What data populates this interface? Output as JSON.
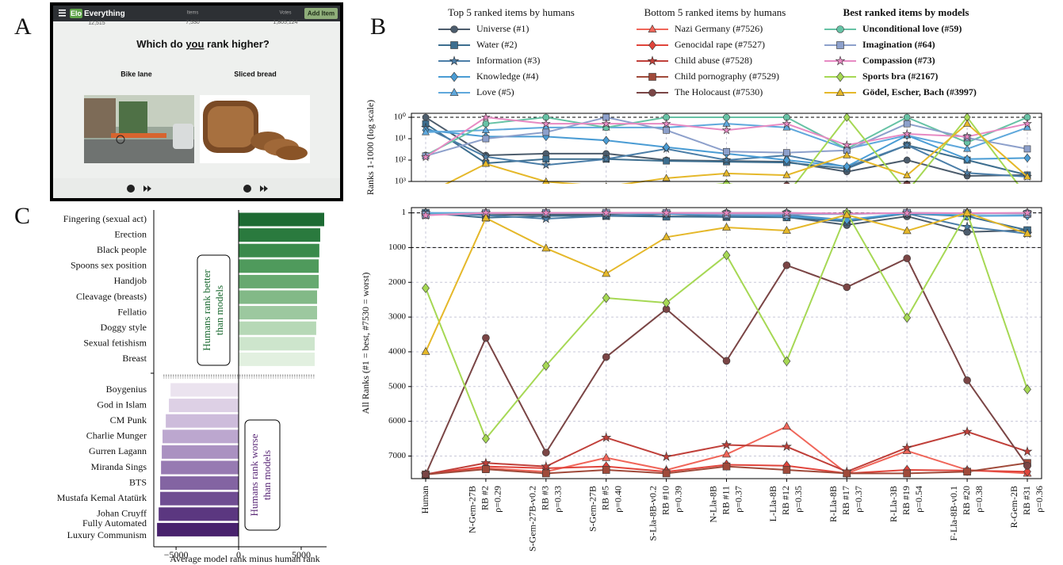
{
  "screenshot": {
    "panel_label": "A",
    "logo_prefix": "Elo",
    "logo_name": "Everything",
    "counter": "12,515",
    "stats": [
      {
        "label": "Items",
        "value": "7,530"
      },
      {
        "label": "Votes",
        "value": "1,805,124"
      }
    ],
    "button": "Add Item",
    "question": [
      "Which do ",
      "you",
      " rank higher?"
    ],
    "options": [
      "Bike lane",
      "Sliced bread"
    ]
  },
  "chart_data": [
    {
      "type": "bar",
      "panel_label": "C",
      "xlabel": "Average model rank minus human rank",
      "xlim": [
        -6780,
        7030
      ],
      "xticks": [
        {
          "value": -5000,
          "label": "−5000"
        },
        0,
        5000
      ],
      "groups": [
        {
          "categories": [
            "Fingering (sexual act)",
            "Erection",
            "Black people",
            "Spoons sex position",
            "Handjob",
            "Cleavage (breasts)",
            "Fellatio",
            "Doggy style",
            "Sexual fetishism",
            "Breast"
          ],
          "values": [
            6840,
            6520,
            6450,
            6400,
            6400,
            6270,
            6270,
            6200,
            6080,
            6080
          ],
          "colors": [
            "#1d6b33",
            "#2a7a3e",
            "#3a8a4b",
            "#4f9a5c",
            "#67a970",
            "#82b987",
            "#9cc89f",
            "#b6d8b6",
            "#cde5cc",
            "#e2f0e0"
          ]
        },
        {
          "categories": [
            "Boygenius",
            "God in Islam",
            "CM Punk",
            "Charlie Munger",
            "Gurren Lagann",
            "Miranda Sings",
            "BTS",
            "Mustafa Kemal Atatürk",
            "Johan Cruyff",
            [
              "Fully Automated",
              "Luxury Communism"
            ]
          ],
          "values": [
            -5440,
            -5570,
            -5820,
            -6080,
            -6140,
            -6200,
            -6270,
            -6270,
            -6390,
            -6520
          ],
          "colors": [
            "#ebe3ef",
            "#ddd0e5",
            "#cdbcdb",
            "#bca7cf",
            "#aa91c1",
            "#977ab2",
            "#8364a2",
            "#6f4d92",
            "#5b3780",
            "#48226d"
          ]
        }
      ],
      "annotations": [
        {
          "lines": [
            "Humans rank better",
            "than models"
          ],
          "color": "#1d6b33"
        },
        {
          "lines": [
            "Humans rank worse",
            "than models"
          ],
          "color": "#5b2a78"
        }
      ]
    },
    {
      "type": "line",
      "panel_label": "B",
      "categories": [
        [
          "Human"
        ],
        [
          "N-Gem-27B",
          "RB #2",
          "ρ=0.29"
        ],
        [
          "S-Gem-27B-v0.2",
          "RB #3",
          "ρ=0.33"
        ],
        [
          "S-Gem-27B",
          "RB #5",
          "ρ=0.40"
        ],
        [
          "S-Lla-8B-v0.2",
          "RB #10",
          "ρ=0.39"
        ],
        [
          "N-Lla-8B",
          "RB #11",
          "ρ=0.37"
        ],
        [
          "L-Lla-8B",
          "RB #12",
          "ρ=0.35"
        ],
        [
          "R-Lla-8B",
          "RB #17",
          "ρ=0.37"
        ],
        [
          "R-Lla-3B",
          "RB #19",
          "ρ=0.54"
        ],
        [
          "F-Lla-8B-v0.1",
          "RB #20",
          "ρ=0.38"
        ],
        [
          "R-Gem-2B",
          "RB #31",
          "ρ=0.36"
        ]
      ],
      "panels": [
        {
          "ylabel": "Ranks 1-1000 (log scale)",
          "log_scale": true,
          "ylim": [
            1000,
            0.65
          ],
          "yticks": [
            {
              "value": 1,
              "label": "10⁰"
            },
            {
              "value": 10,
              "label": "10¹"
            },
            {
              "value": 100,
              "label": "10²"
            },
            {
              "value": 1000,
              "label": "10³"
            }
          ]
        },
        {
          "ylabel": "All Ranks (#1 = best, #7530 = worst)",
          "log_scale": false,
          "ylim": [
            7650,
            -150
          ],
          "yticks": [
            1,
            1000,
            2000,
            3000,
            4000,
            5000,
            6000,
            7000
          ],
          "grid": true
        }
      ],
      "series_groups": [
        {
          "title": "Top 5 ranked items by humans",
          "bold": false,
          "series": [
            {
              "name": "Universe (#1)",
              "color": "#4c5c6c",
              "marker": "circle",
              "values": [
                1,
                60,
                50,
                50,
                100,
                110,
                120,
                350,
                100,
                550,
                500
              ]
            },
            {
              "name": "Water (#2)",
              "color": "#3d6e8f",
              "marker": "square",
              "values": [
                2,
                140,
                90,
                90,
                110,
                120,
                130,
                250,
                20,
                100,
                500
              ]
            },
            {
              "name": "Information (#3)",
              "color": "#4b7ea8",
              "marker": "star",
              "values": [
                3,
                70,
                170,
                90,
                30,
                100,
                60,
                210,
                20,
                400,
                600
              ]
            },
            {
              "name": "Knowledge (#4)",
              "color": "#4a9cd4",
              "marker": "diamond",
              "values": [
                4,
                8,
                8,
                12,
                25,
                50,
                100,
                200,
                7,
                90,
                80
              ]
            },
            {
              "name": "Love (#5)",
              "color": "#5fa8dc",
              "marker": "triangle",
              "values": [
                5,
                4,
                3,
                3,
                3,
                2,
                3,
                30,
                7,
                30,
                3
              ]
            }
          ]
        },
        {
          "title": "Bottom 5 ranked items by humans",
          "bold": false,
          "series": [
            {
              "name": "Nazi Germany (#7526)",
              "color": "#f0665a",
              "marker": "triangle",
              "values": [
                7526,
                7350,
                7450,
                7050,
                7400,
                6950,
                6150,
                7500,
                6850,
                7400,
                7500
              ]
            },
            {
              "name": "Genocidal rape (#7527)",
              "color": "#e0443b",
              "marker": "diamond",
              "values": [
                7527,
                7300,
                7350,
                7300,
                7450,
                7250,
                7280,
                7500,
                7400,
                7420,
                7450
              ]
            },
            {
              "name": "Child abuse (#7528)",
              "color": "#c0403a",
              "marker": "star",
              "values": [
                7528,
                7200,
                7300,
                6470,
                7020,
                6680,
                6730,
                7450,
                6760,
                6300,
                6870
              ]
            },
            {
              "name": "Child pornography (#7529)",
              "color": "#a04a3a",
              "marker": "square",
              "values": [
                7529,
                7380,
                7500,
                7400,
                7500,
                7300,
                7400,
                7500,
                7500,
                7450,
                7200
              ]
            },
            {
              "name": "The Holocaust (#7530)",
              "color": "#7a4545",
              "marker": "circle",
              "values": [
                7530,
                3600,
                6900,
                4150,
                2770,
                4260,
                1510,
                2140,
                1310,
                4820,
                7280
              ]
            }
          ]
        },
        {
          "title": "Best ranked items by models",
          "bold": true,
          "series": [
            {
              "name": "Unconditional love (#59)",
              "color": "#66c2a5",
              "marker": "circle",
              "values": [
                59,
                2,
                1,
                3,
                1,
                1,
                1,
                30,
                1,
                15,
                1
              ]
            },
            {
              "name": "Imagination (#64)",
              "color": "#8da0cb",
              "marker": "square",
              "values": [
                64,
                10,
                5,
                1,
                4,
                40,
                45,
                35,
                2,
                9,
                30
              ]
            },
            {
              "name": "Compassion (#73)",
              "color": "#e78ac3",
              "marker": "star",
              "values": [
                73,
                1,
                2,
                2,
                2,
                4,
                2,
                20,
                6,
                8,
                2
              ]
            },
            {
              "name": "Sports bra (#2167)",
              "color": "#a6d854",
              "marker": "diamond",
              "values": [
                2167,
                6500,
                4400,
                2450,
                2590,
                1220,
                4270,
                1,
                3020,
                1,
                5080
              ]
            },
            {
              "name": "Gödel, Escher, Bach (#3997)",
              "color": "#e5b82a",
              "marker": "triangle",
              "values": [
                3997,
                150,
                1020,
                1750,
                700,
                420,
                510,
                60,
                520,
                2,
                600
              ]
            }
          ]
        }
      ]
    }
  ]
}
